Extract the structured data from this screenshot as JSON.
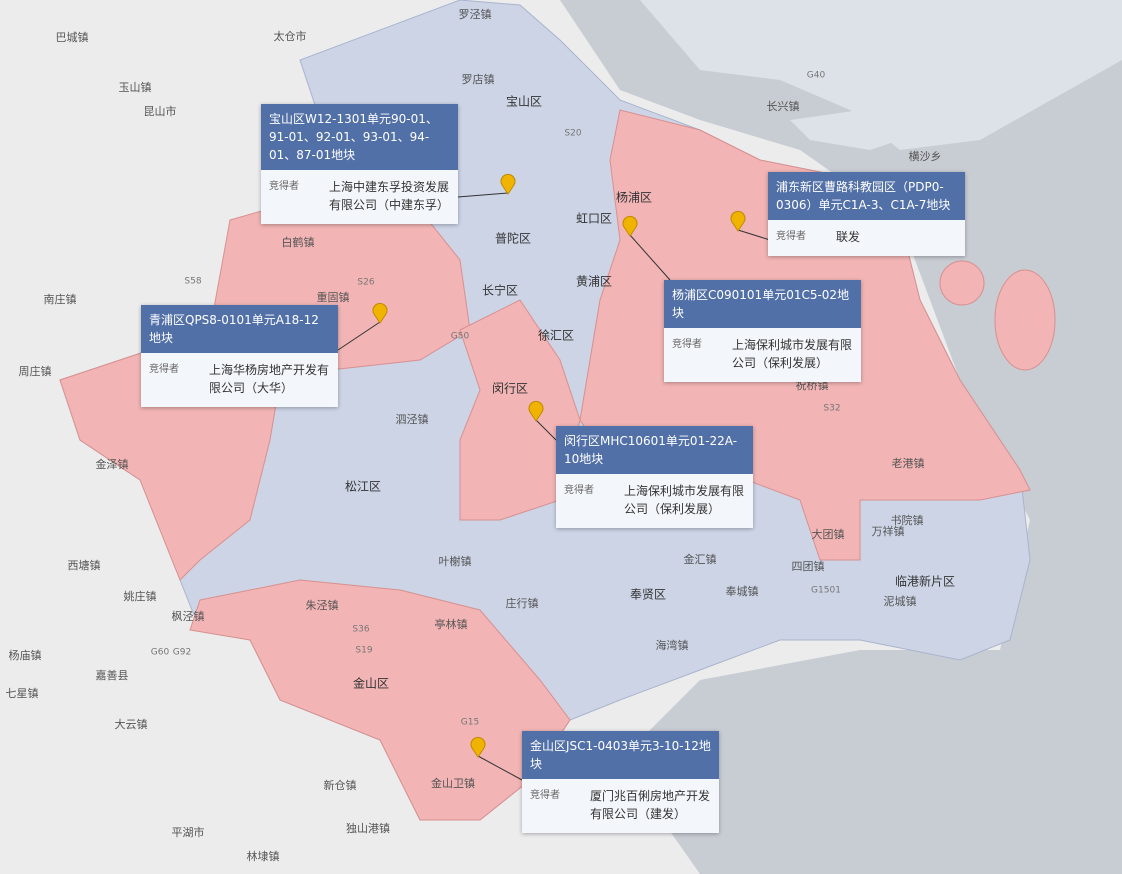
{
  "map_labels": [
    "罗泾镇",
    "太仓市",
    "巴城镇",
    "罗店镇",
    "宝山区",
    "玉山镇",
    "昆山市",
    "杨浦区",
    "虹口区",
    "普陀区",
    "长宁区",
    "黄浦区",
    "徐汇区",
    "闵行区",
    "松江区",
    "奉贤区",
    "金山区",
    "临港新片区",
    "横沙乡",
    "长兴镇",
    "泗泾镇",
    "叶榭镇",
    "庄行镇",
    "海湾镇",
    "亭林镇",
    "朱泾镇",
    "枫泾镇",
    "金山卫镇",
    "新仓镇",
    "平湖市",
    "嘉善县",
    "西塘镇",
    "姚庄镇",
    "杨庙镇",
    "七星镇",
    "大云镇",
    "万祥镇",
    "书院镇",
    "泥城镇",
    "大团镇",
    "老港镇",
    "祝桥镇",
    "四团镇",
    "奉城镇",
    "独山港镇",
    "林埭镇",
    "周庄镇",
    "金泽镇",
    "白鹤镇",
    "重固镇",
    "南庄镇",
    "金汇镇",
    "G40",
    "G50",
    "S20",
    "G15",
    "S26",
    "S32",
    "G1501",
    "S36",
    "S19",
    "G60",
    "G92",
    "S58"
  ],
  "callouts": [
    {
      "title": "宝山区W12-1301单元90-01、91-01、92-01、93-01、94-01、87-01地块",
      "label": "竞得者",
      "winner": "上海中建东孚投资发展有限公司（中建东孚）"
    },
    {
      "title": "浦东新区曹路科教园区（PDP0-0306）单元C1A-3、C1A-7地块",
      "label": "竞得者",
      "winner": "联发"
    },
    {
      "title": "杨浦区C090101单元01C5-02地块",
      "label": "竞得者",
      "winner": "上海保利城市发展有限公司（保利发展）"
    },
    {
      "title": "青浦区QPS8-0101单元A18-12地块",
      "label": "竞得者",
      "winner": "上海华杨房地产开发有限公司（大华）"
    },
    {
      "title": "闵行区MHC10601单元01-22A-10地块",
      "label": "竞得者",
      "winner": "上海保利城市发展有限公司（保利发展）"
    },
    {
      "title": "金山区JSC1-0403单元3-10-12地块",
      "label": "竞得者",
      "winner": "厦门兆百俐房地产开发有限公司（建发）"
    }
  ]
}
